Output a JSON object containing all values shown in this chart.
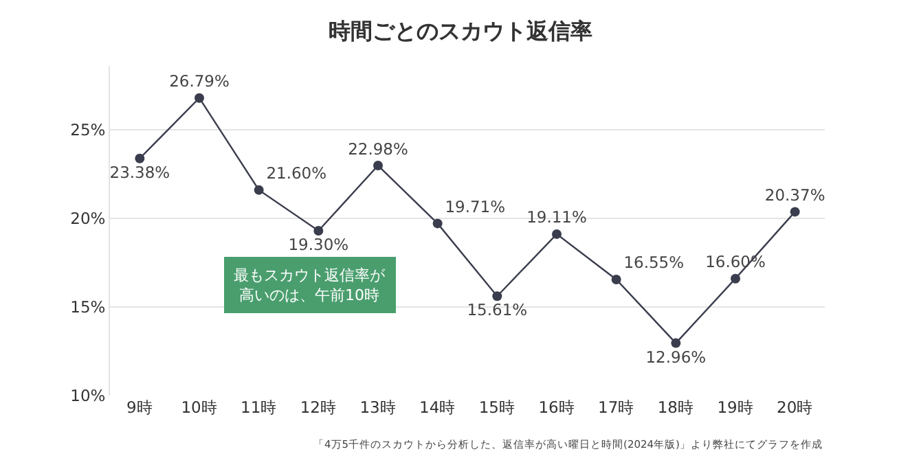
{
  "chart_data": {
    "type": "line",
    "title": "時間ごとのスカウト返信率",
    "categories": [
      "9時",
      "10時",
      "11時",
      "12時",
      "13時",
      "14時",
      "15時",
      "16時",
      "17時",
      "18時",
      "19時",
      "20時"
    ],
    "values": [
      23.38,
      26.79,
      21.6,
      19.3,
      22.98,
      19.71,
      15.61,
      19.11,
      16.55,
      12.96,
      16.6,
      20.37
    ],
    "value_labels": [
      "23.38%",
      "26.79%",
      "21.60%",
      "19.30%",
      "22.98%",
      "19.71%",
      "15.61%",
      "19.11%",
      "16.55%",
      "12.96%",
      "16.60%",
      "20.37%"
    ],
    "color": "#3a3d4d",
    "marker": "circle",
    "line_style": "solid",
    "ylim": [
      10,
      28.6
    ],
    "yticks": [
      {
        "value": 10,
        "label": "10%"
      },
      {
        "value": 15,
        "label": "15%"
      },
      {
        "value": 20,
        "label": "20%"
      },
      {
        "value": 25,
        "label": "25%"
      }
    ],
    "grid": "y",
    "legend": false,
    "annotations": [
      "最もスカウト返信率が高いのは、午前10時",
      "「4万5千件のスカウトから分析した、返信率が高い曜日と時間(2024年版)」より弊社にてグラフを作成"
    ]
  }
}
